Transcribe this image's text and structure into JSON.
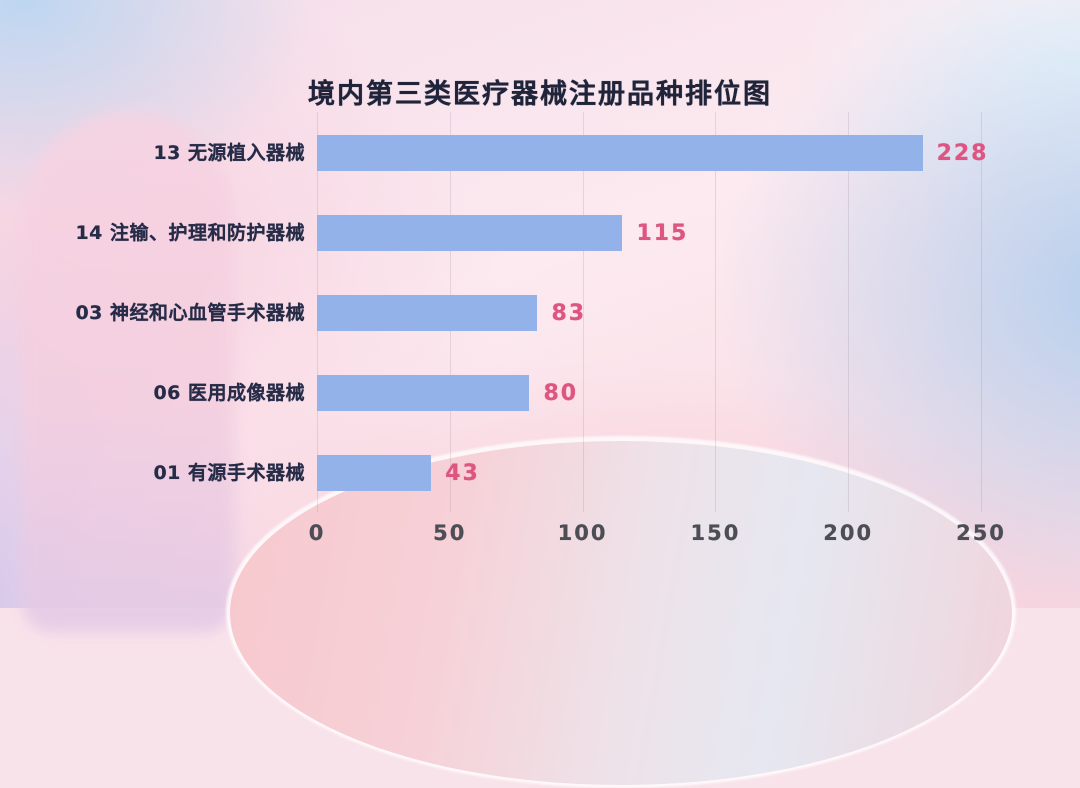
{
  "colors": {
    "bar": "#92b2e9",
    "value_label": "#dd5580",
    "category_label": "#262b47",
    "title_text": "#20243a",
    "tick_text": "#4d4d56",
    "gridline": "rgba(150,130,150,0.22)"
  },
  "chart_data": {
    "type": "bar",
    "orientation": "horizontal",
    "title": "境内第三类医疗器械注册品种排位图",
    "categories": [
      "13 无源植入器械",
      "14 注输、护理和防护器械",
      "03 神经和心血管手术器械",
      "06 医用成像器械",
      "01 有源手术器械"
    ],
    "values": [
      228,
      115,
      83,
      80,
      43
    ],
    "value_labels_shown": true,
    "xlabel": "",
    "ylabel": "",
    "xlim": [
      0,
      250
    ],
    "xticks": [
      0,
      50,
      100,
      150,
      200,
      250
    ],
    "grid": "vertical",
    "legend": "none"
  }
}
